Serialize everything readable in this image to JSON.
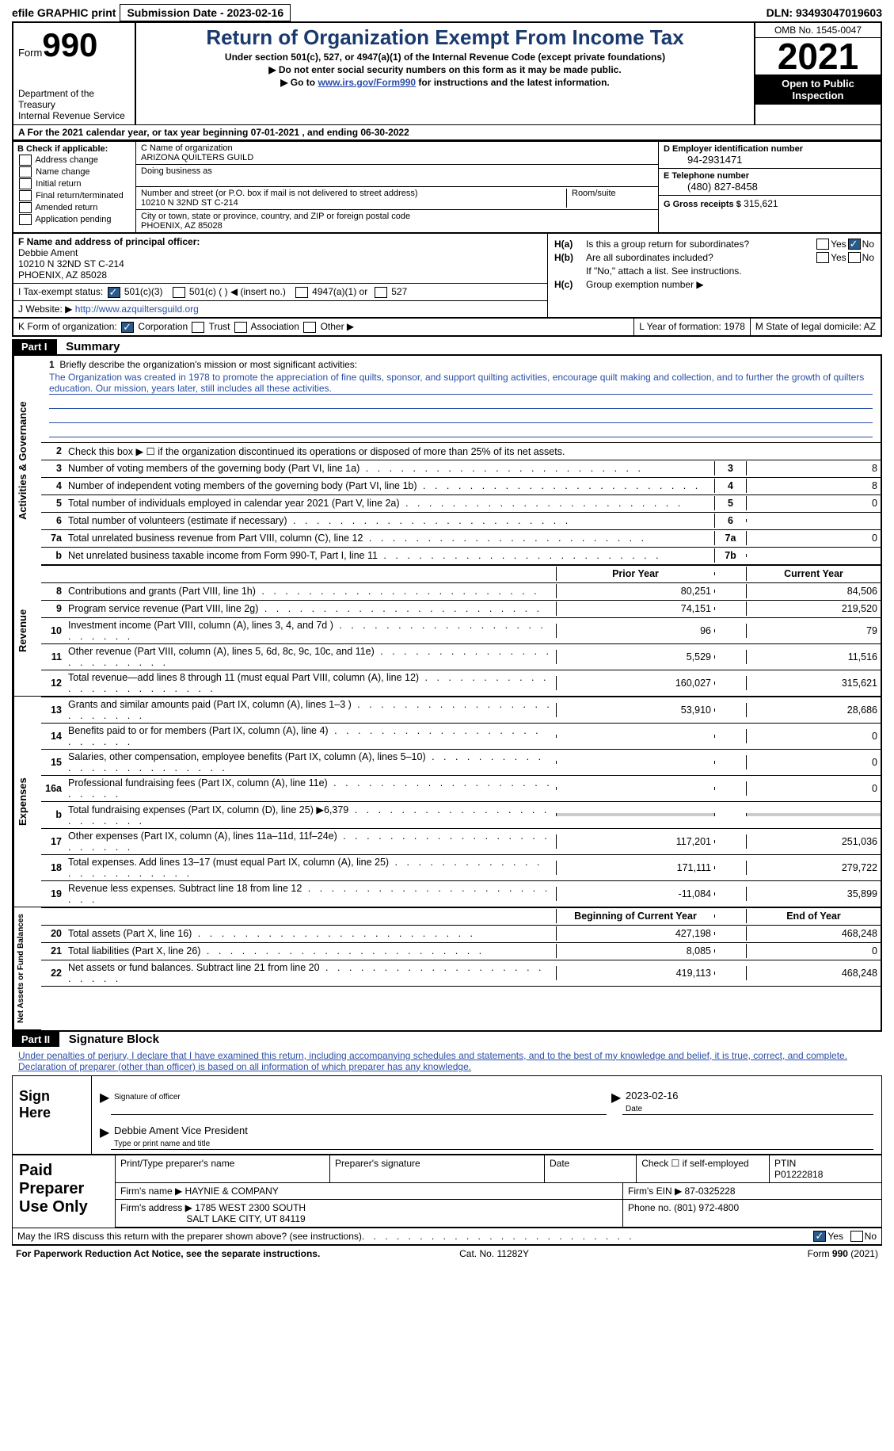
{
  "topbar": {
    "efile": "efile GRAPHIC print",
    "submission_label": "Submission Date - 2023-02-16",
    "dln": "DLN: 93493047019603"
  },
  "header": {
    "form_word": "Form",
    "form_number": "990",
    "dept": "Department of the Treasury\nInternal Revenue Service",
    "title": "Return of Organization Exempt From Income Tax",
    "subtitle1": "Under section 501(c), 527, or 4947(a)(1) of the Internal Revenue Code (except private foundations)",
    "subtitle2": "Do not enter social security numbers on this form as it may be made public.",
    "subtitle3_prefix": "Go to ",
    "subtitle3_link": "www.irs.gov/Form990",
    "subtitle3_suffix": " for instructions and the latest information.",
    "omb": "OMB No. 1545-0047",
    "year": "2021",
    "inspection": "Open to Public Inspection"
  },
  "calendar_line": "A For the 2021 calendar year, or tax year beginning 07-01-2021    , and ending 06-30-2022",
  "section_b": {
    "title": "B Check if applicable:",
    "opts": [
      "Address change",
      "Name change",
      "Initial return",
      "Final return/terminated",
      "Amended return",
      "Application pending"
    ]
  },
  "section_c": {
    "name_label": "C Name of organization",
    "name": "ARIZONA QUILTERS GUILD",
    "dba_label": "Doing business as",
    "dba": "",
    "addr_label": "Number and street (or P.O. box if mail is not delivered to street address)",
    "room_label": "Room/suite",
    "addr": "10210 N 32ND ST C-214",
    "city_label": "City or town, state or province, country, and ZIP or foreign postal code",
    "city": "PHOENIX, AZ  85028"
  },
  "section_d": {
    "ein_label": "D Employer identification number",
    "ein": "94-2931471",
    "tel_label": "E Telephone number",
    "tel": "(480) 827-8458",
    "gross_label": "G Gross receipts $",
    "gross": "315,621"
  },
  "section_f": {
    "label": "F  Name and address of principal officer:",
    "name": "Debbie Ament",
    "addr1": "10210 N 32ND ST C-214",
    "addr2": "PHOENIX, AZ  85028"
  },
  "section_h": {
    "a": "Is this a group return for subordinates?",
    "b": "Are all subordinates included?",
    "b_note": "If \"No,\" attach a list. See instructions.",
    "c": "Group exemption number ▶"
  },
  "section_i": {
    "label": "I   Tax-exempt status:",
    "opts": [
      "501(c)(3)",
      "501(c) (  ) ◀ (insert no.)",
      "4947(a)(1) or",
      "527"
    ]
  },
  "section_j": {
    "label": "J   Website: ▶",
    "url": "http://www.azquiltersguild.org"
  },
  "section_k": {
    "label": "K Form of organization:",
    "opts": [
      "Corporation",
      "Trust",
      "Association",
      "Other ▶"
    ]
  },
  "section_l": {
    "label": "L Year of formation:",
    "val": "1978"
  },
  "section_m": {
    "label": "M State of legal domicile:",
    "val": "AZ"
  },
  "part1": {
    "header": "Part I",
    "title": "Summary",
    "line1_label": "Briefly describe the organization's mission or most significant activities:",
    "mission": "The Organization was created in 1978 to promote the appreciation of fine quilts, sponsor, and support quilting activities, encourage quilt making and collection, and to further the growth of quilters education. Our mission, years later, still includes all these activities.",
    "line2": "Check this box ▶ ☐  if the organization discontinued its operations or disposed of more than 25% of its net assets.",
    "prior_year_header": "Prior Year",
    "current_year_header": "Current Year",
    "beg_year_header": "Beginning of Current Year",
    "end_year_header": "End of Year",
    "sections": {
      "governance": {
        "side": "Activities & Governance",
        "rows": [
          {
            "n": "3",
            "d": "Number of voting members of the governing body (Part VI, line 1a)",
            "box": "3",
            "v": "8"
          },
          {
            "n": "4",
            "d": "Number of independent voting members of the governing body (Part VI, line 1b)",
            "box": "4",
            "v": "8"
          },
          {
            "n": "5",
            "d": "Total number of individuals employed in calendar year 2021 (Part V, line 2a)",
            "box": "5",
            "v": "0"
          },
          {
            "n": "6",
            "d": "Total number of volunteers (estimate if necessary)",
            "box": "6",
            "v": ""
          },
          {
            "n": "7a",
            "d": "Total unrelated business revenue from Part VIII, column (C), line 12",
            "box": "7a",
            "v": "0"
          },
          {
            "n": "b",
            "d": "Net unrelated business taxable income from Form 990-T, Part I, line 11",
            "box": "7b",
            "v": ""
          }
        ]
      },
      "revenue": {
        "side": "Revenue",
        "rows": [
          {
            "n": "8",
            "d": "Contributions and grants (Part VIII, line 1h)",
            "py": "80,251",
            "cy": "84,506"
          },
          {
            "n": "9",
            "d": "Program service revenue (Part VIII, line 2g)",
            "py": "74,151",
            "cy": "219,520"
          },
          {
            "n": "10",
            "d": "Investment income (Part VIII, column (A), lines 3, 4, and 7d )",
            "py": "96",
            "cy": "79"
          },
          {
            "n": "11",
            "d": "Other revenue (Part VIII, column (A), lines 5, 6d, 8c, 9c, 10c, and 11e)",
            "py": "5,529",
            "cy": "11,516"
          },
          {
            "n": "12",
            "d": "Total revenue—add lines 8 through 11 (must equal Part VIII, column (A), line 12)",
            "py": "160,027",
            "cy": "315,621"
          }
        ]
      },
      "expenses": {
        "side": "Expenses",
        "rows": [
          {
            "n": "13",
            "d": "Grants and similar amounts paid (Part IX, column (A), lines 1–3 )",
            "py": "53,910",
            "cy": "28,686"
          },
          {
            "n": "14",
            "d": "Benefits paid to or for members (Part IX, column (A), line 4)",
            "py": "",
            "cy": "0"
          },
          {
            "n": "15",
            "d": "Salaries, other compensation, employee benefits (Part IX, column (A), lines 5–10)",
            "py": "",
            "cy": "0"
          },
          {
            "n": "16a",
            "d": "Professional fundraising fees (Part IX, column (A), line 11e)",
            "py": "",
            "cy": "0"
          },
          {
            "n": "b",
            "d": "Total fundraising expenses (Part IX, column (D), line 25) ▶6,379",
            "py": "gray",
            "cy": "gray"
          },
          {
            "n": "17",
            "d": "Other expenses (Part IX, column (A), lines 11a–11d, 11f–24e)",
            "py": "117,201",
            "cy": "251,036"
          },
          {
            "n": "18",
            "d": "Total expenses. Add lines 13–17 (must equal Part IX, column (A), line 25)",
            "py": "171,111",
            "cy": "279,722"
          },
          {
            "n": "19",
            "d": "Revenue less expenses. Subtract line 18 from line 12",
            "py": "-11,084",
            "cy": "35,899"
          }
        ]
      },
      "netassets": {
        "side": "Net Assets or Fund Balances",
        "rows": [
          {
            "n": "20",
            "d": "Total assets (Part X, line 16)",
            "py": "427,198",
            "cy": "468,248"
          },
          {
            "n": "21",
            "d": "Total liabilities (Part X, line 26)",
            "py": "8,085",
            "cy": "0"
          },
          {
            "n": "22",
            "d": "Net assets or fund balances. Subtract line 21 from line 20",
            "py": "419,113",
            "cy": "468,248"
          }
        ]
      }
    }
  },
  "part2": {
    "header": "Part II",
    "title": "Signature Block",
    "declaration": "Under penalties of perjury, I declare that I have examined this return, including accompanying schedules and statements, and to the best of my knowledge and belief, it is true, correct, and complete. Declaration of preparer (other than officer) is based on all information of which preparer has any knowledge.",
    "sign_here": "Sign Here",
    "sig_officer": "Signature of officer",
    "sig_date": "2023-02-16",
    "date_label": "Date",
    "officer_name": "Debbie Ament  Vice President",
    "type_label": "Type or print name and title",
    "paid_label": "Paid Preparer Use Only",
    "preparer_name_label": "Print/Type preparer's name",
    "preparer_sig_label": "Preparer's signature",
    "check_self": "Check ☐ if self-employed",
    "ptin_label": "PTIN",
    "ptin": "P01222818",
    "firm_name_label": "Firm's name    ▶",
    "firm_name": "HAYNIE & COMPANY",
    "firm_ein_label": "Firm's EIN ▶",
    "firm_ein": "87-0325228",
    "firm_addr_label": "Firm's address ▶",
    "firm_addr": "1785 WEST 2300 SOUTH",
    "firm_city": "SALT LAKE CITY, UT  84119",
    "phone_label": "Phone no.",
    "phone": "(801) 972-4800",
    "discuss": "May the IRS discuss this return with the preparer shown above? (see instructions)"
  },
  "footer": {
    "paperwork": "For Paperwork Reduction Act Notice, see the separate instructions.",
    "cat": "Cat. No. 11282Y",
    "form": "Form 990 (2021)"
  }
}
